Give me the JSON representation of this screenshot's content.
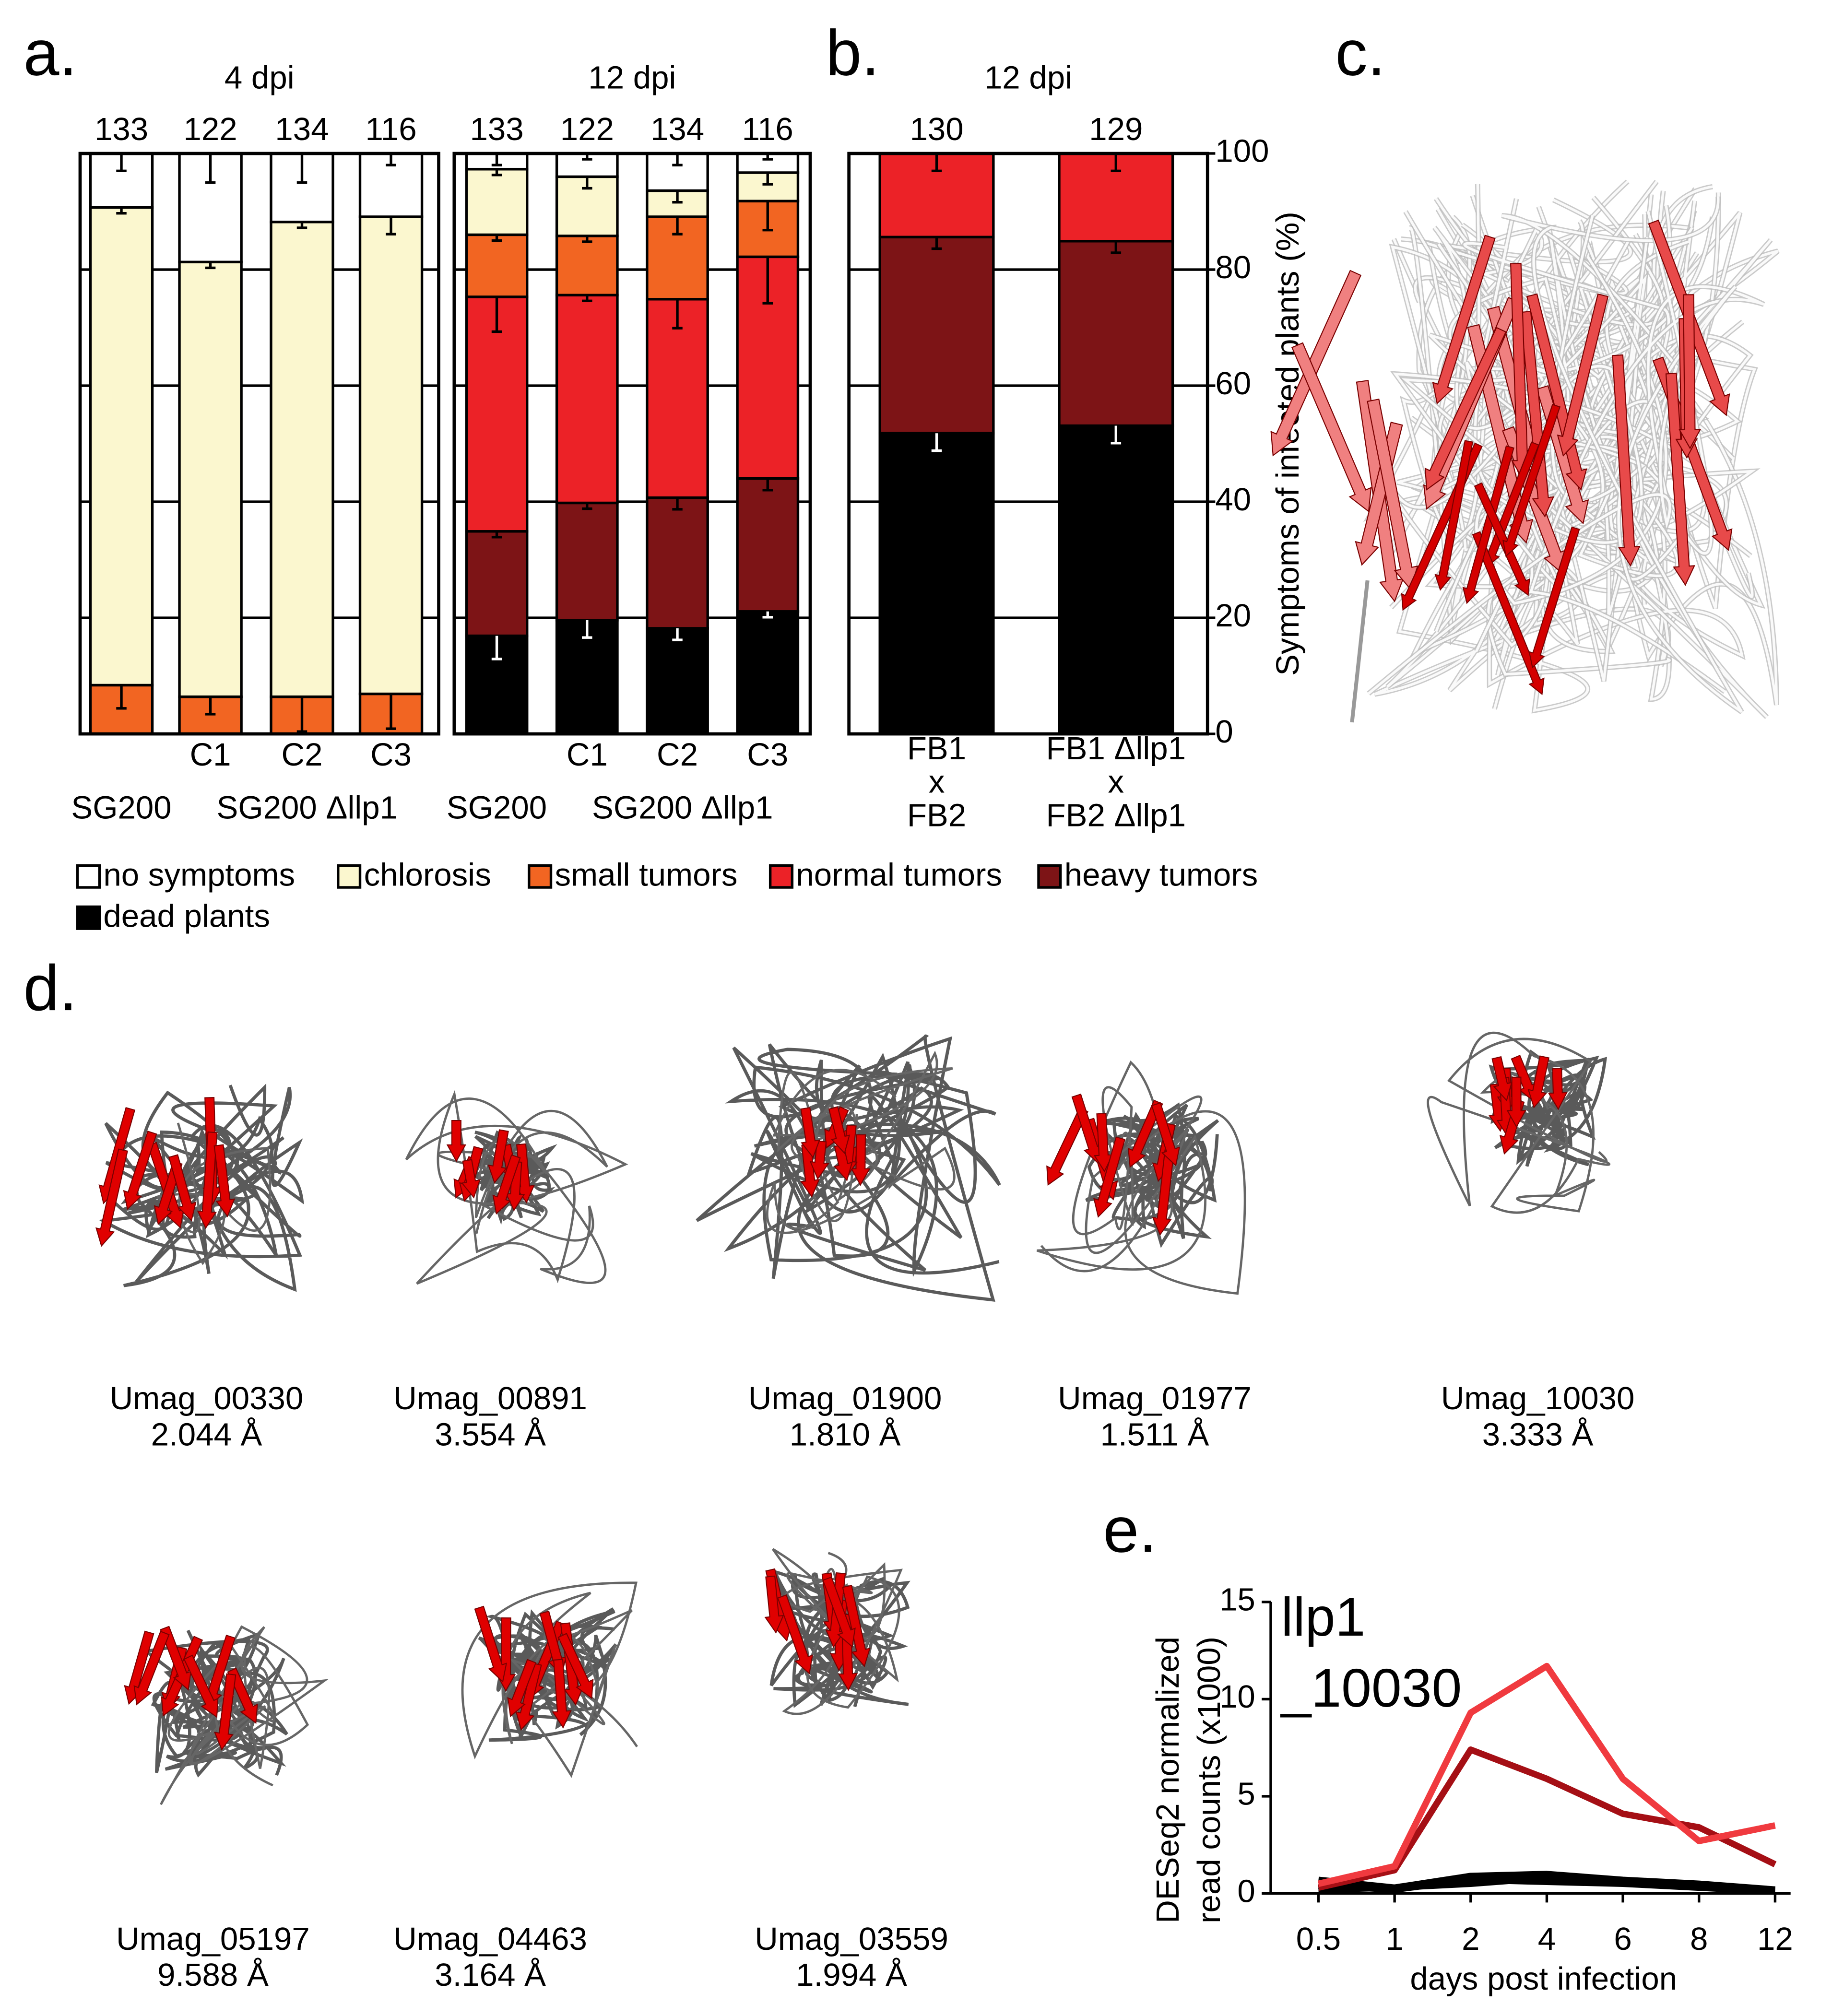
{
  "panel_labels": [
    "a.",
    "b.",
    "c.",
    "d.",
    "e."
  ],
  "chart_data": [
    {
      "type": "bar",
      "stacked": true,
      "title": "4 dpi",
      "counts": [
        133,
        122,
        134,
        116
      ],
      "categories": [
        null,
        "C1",
        "C2",
        "C3"
      ],
      "group_labels": [
        "SG200",
        "SG200 Δllp1"
      ],
      "series": [
        {
          "name": "no symptoms",
          "color": "#ffffff",
          "values": [
            9.3,
            18.7,
            11.8,
            10.9
          ],
          "errors": [
            3,
            5,
            5,
            2
          ]
        },
        {
          "name": "chlorosis",
          "color": "#fbf7cf",
          "values": [
            82.3,
            74.9,
            81.8,
            82.2
          ],
          "errors": [
            1,
            1,
            1,
            3
          ]
        },
        {
          "name": "small tumors",
          "color": "#f26522",
          "values": [
            8.4,
            6.4,
            6.4,
            6.9
          ],
          "errors": [
            4,
            3,
            6,
            6
          ]
        }
      ],
      "ylim": [
        0,
        100
      ],
      "yticks": [
        0,
        20,
        40,
        60,
        80,
        100
      ],
      "grid": true,
      "y_axis": "none"
    },
    {
      "type": "bar",
      "stacked": true,
      "title": "12 dpi",
      "counts": [
        133,
        122,
        134,
        116
      ],
      "categories": [
        null,
        "C1",
        "C2",
        "C3"
      ],
      "group_labels": [
        "SG200",
        "SG200 Δllp1"
      ],
      "series": [
        {
          "name": "no symptoms",
          "color": "#ffffff",
          "values": [
            2.7,
            4.0,
            6.4,
            3.3
          ],
          "errors": [
            2,
            1,
            2,
            1
          ]
        },
        {
          "name": "chlorosis",
          "color": "#fbf7cf",
          "values": [
            11.3,
            10.2,
            4.5,
            4.9
          ],
          "errors": [
            1,
            2,
            2,
            2
          ]
        },
        {
          "name": "small tumors",
          "color": "#f26522",
          "values": [
            10.7,
            10.2,
            14.2,
            9.6
          ],
          "errors": [
            1,
            1,
            3,
            5
          ]
        },
        {
          "name": "normal tumors",
          "color": "#ec2227",
          "values": [
            40.4,
            35.8,
            34.2,
            38.2
          ],
          "errors": [
            6,
            1,
            5,
            8
          ]
        },
        {
          "name": "heavy tumors",
          "color": "#7d1416",
          "values": [
            18.0,
            20.2,
            22.5,
            22.9
          ],
          "errors": [
            1,
            1,
            2,
            2
          ]
        },
        {
          "name": "dead plants",
          "color": "#000000",
          "values": [
            16.9,
            19.6,
            18.2,
            21.1
          ],
          "errors": [
            4,
            3,
            2,
            1
          ]
        }
      ],
      "ylim": [
        0,
        100
      ],
      "yticks": [
        0,
        20,
        40,
        60,
        80,
        100
      ],
      "grid": true,
      "y_axis": "none"
    },
    {
      "type": "bar",
      "stacked": true,
      "title": "12 dpi",
      "counts": [
        130,
        129
      ],
      "categories": [
        [
          "FB1",
          "x",
          "FB2"
        ],
        [
          "FB1 Δllp1",
          "x",
          "FB2 Δllp1"
        ]
      ],
      "series": [
        {
          "name": "normal tumors",
          "color": "#ec2227",
          "values": [
            14.4,
            15.1
          ],
          "errors": [
            3,
            3
          ]
        },
        {
          "name": "heavy tumors",
          "color": "#7d1416",
          "values": [
            33.8,
            31.8
          ],
          "errors": [
            2,
            2
          ]
        },
        {
          "name": "dead plants",
          "color": "#000000",
          "values": [
            51.8,
            53.1
          ],
          "errors": [
            3,
            3
          ]
        }
      ],
      "ylim": [
        0,
        100
      ],
      "yticks": [
        0,
        20,
        40,
        60,
        80,
        100
      ],
      "grid": true,
      "y_axis": "right",
      "ylabel": "Symptoms of infected plants (%)"
    },
    {
      "type": "line",
      "xlabel": "days post infection",
      "ylabel": [
        "DESeq2 normalized",
        "read counts (x1000)"
      ],
      "categories": [
        "0.5",
        "1",
        "2",
        "4",
        "6",
        "8",
        "12"
      ],
      "series": [
        {
          "name": "llp1",
          "color": "#f03a3f",
          "values": [
            0.5,
            1.4,
            9.3,
            11.7,
            5.9,
            2.7,
            3.5
          ]
        },
        {
          "name": "_10030",
          "color": "#a50f15",
          "values": [
            0.3,
            1.2,
            7.4,
            5.9,
            4.1,
            3.4,
            1.5
          ]
        },
        {
          "color": "#000000",
          "values": [
            0.7,
            0.3,
            0.9,
            1.0,
            0.7,
            0.5,
            0.2
          ]
        },
        {
          "color": "#000000",
          "values": [
            0.4,
            0.2,
            0.7,
            0.6,
            0.5,
            0.3,
            0.1
          ]
        },
        {
          "color": "#000000",
          "values": [
            0.2,
            0.3,
            0.5,
            0.8,
            0.6,
            0.4,
            0.2
          ]
        }
      ],
      "ylim": [
        0,
        15
      ],
      "yticks": [
        0,
        5,
        10,
        15
      ]
    }
  ],
  "structures": [
    {
      "name": "Umag_00330",
      "rmsd": "2.044 Å"
    },
    {
      "name": "Umag_00891",
      "rmsd": "3.554 Å"
    },
    {
      "name": "Umag_01900",
      "rmsd": "1.810 Å"
    },
    {
      "name": "Umag_01977",
      "rmsd": "1.511 Å"
    },
    {
      "name": "Umag_10030",
      "rmsd": "3.333 Å"
    },
    {
      "name": "Umag_05197",
      "rmsd": "9.588 Å"
    },
    {
      "name": "Umag_04463",
      "rmsd": "3.164 Å"
    },
    {
      "name": "Umag_03559",
      "rmsd": "1.994 Å"
    }
  ]
}
